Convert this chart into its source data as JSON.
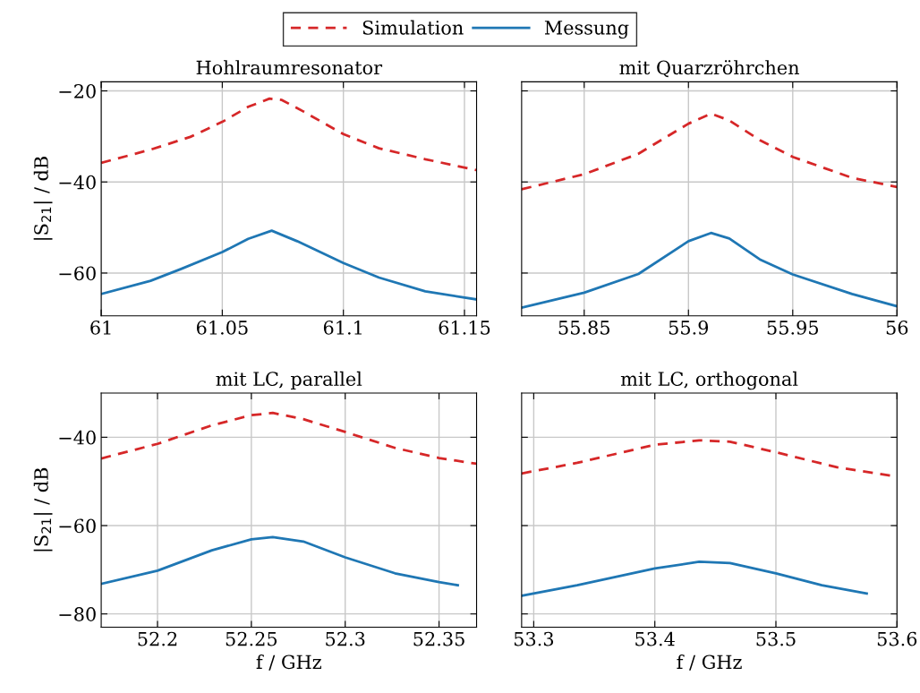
{
  "chart_data": [
    {
      "type": "line",
      "title": "Hohlraumresonator",
      "ylabel": "|S$_{21}$| / dB",
      "legend": "top",
      "grid": true,
      "tick_labels": "xy",
      "xlim": [
        61,
        61.155
      ],
      "xticks": [
        61,
        61.05,
        61.1,
        61.15
      ],
      "ylim": [
        -69.4,
        -18
      ],
      "yticks": [
        {
          "value": -20,
          "label": "−20"
        },
        {
          "value": -40,
          "label": "−40"
        },
        {
          "value": -60,
          "label": "−60"
        }
      ],
      "series": [
        {
          "name": "Simulation",
          "color": "#d62728",
          "line_style": "dashed",
          "x": [
            61.0,
            61.0204,
            61.0368,
            61.05,
            61.0607,
            61.0695,
            61.0746,
            61.0834,
            61.1,
            61.1147,
            61.1338,
            61.155
          ],
          "values": [
            -35.8,
            -32.9,
            -30.1,
            -26.8,
            -23.5,
            -21.7,
            -22.0,
            -24.5,
            -29.5,
            -32.6,
            -35.0,
            -37.4
          ]
        },
        {
          "name": "Messung",
          "color": "#1f77b4",
          "line_style": "solid",
          "x": [
            61.0,
            61.0204,
            61.033,
            61.05,
            61.0607,
            61.0704,
            61.0809,
            61.1,
            61.1147,
            61.1338,
            61.155
          ],
          "values": [
            -64.6,
            -61.7,
            -59.1,
            -55.4,
            -52.5,
            -50.7,
            -53.0,
            -57.8,
            -61.0,
            -64.0,
            -65.8
          ]
        }
      ]
    },
    {
      "type": "line",
      "title": "mit Quarzröhrchen",
      "grid": true,
      "tick_labels": "x",
      "xlim": [
        55.82,
        56
      ],
      "xticks": [
        55.85,
        55.9,
        55.95,
        56
      ],
      "ylim": [
        -69.4,
        -18
      ],
      "yticks": [
        {
          "value": -20,
          "label": null
        },
        {
          "value": -40,
          "label": null
        },
        {
          "value": -60,
          "label": null
        }
      ],
      "series": [
        {
          "color": "#d62728",
          "line_style": "dashed",
          "x": [
            55.82,
            55.85,
            55.876,
            55.9,
            55.9108,
            55.9196,
            55.9342,
            55.95,
            55.9785,
            56.0
          ],
          "values": [
            -41.6,
            -38.3,
            -33.8,
            -27.2,
            -25.0,
            -26.5,
            -30.8,
            -34.5,
            -39.1,
            -41.1
          ]
        },
        {
          "color": "#1f77b4",
          "line_style": "solid",
          "x": [
            55.82,
            55.85,
            55.876,
            55.9,
            55.9108,
            55.9196,
            55.9342,
            55.95,
            55.9785,
            56.0
          ],
          "values": [
            -67.6,
            -64.3,
            -60.2,
            -53.0,
            -51.2,
            -52.4,
            -57.0,
            -60.3,
            -64.6,
            -67.3
          ]
        }
      ]
    },
    {
      "type": "line",
      "title": "mit LC, parallel",
      "ylabel": "|S$_{21}$| / dB",
      "xlabel": "f / GHz",
      "grid": true,
      "tick_labels": "xy",
      "xlim": [
        52.17,
        52.37
      ],
      "xticks": [
        52.2,
        52.25,
        52.3,
        52.35
      ],
      "ylim": [
        -83,
        -30
      ],
      "yticks": [
        {
          "value": -40,
          "label": "−40"
        },
        {
          "value": -60,
          "label": "−60"
        },
        {
          "value": -80,
          "label": "−80"
        }
      ],
      "series": [
        {
          "color": "#d62728",
          "line_style": "dashed",
          "x": [
            52.17,
            52.2,
            52.229,
            52.25,
            52.2614,
            52.2777,
            52.3,
            52.3265,
            52.35,
            52.37
          ],
          "values": [
            -44.8,
            -41.5,
            -37.3,
            -35.0,
            -34.5,
            -35.9,
            -38.8,
            -42.4,
            -44.7,
            -46.0
          ]
        },
        {
          "color": "#1f77b4",
          "line_style": "solid",
          "x": [
            52.17,
            52.2,
            52.229,
            52.25,
            52.2614,
            52.2777,
            52.3,
            52.3265,
            52.35,
            52.36
          ],
          "values": [
            -73.2,
            -70.2,
            -65.6,
            -63.1,
            -62.6,
            -63.6,
            -67.2,
            -70.8,
            -72.8,
            -73.5
          ]
        }
      ]
    },
    {
      "type": "line",
      "title": "mit LC, orthogonal",
      "xlabel": "f / GHz",
      "grid": true,
      "tick_labels": "x",
      "xlim": [
        53.29,
        53.6
      ],
      "xticks": [
        53.3,
        53.4,
        53.5,
        53.6
      ],
      "ylim": [
        -83,
        -30
      ],
      "yticks": [
        {
          "value": -40,
          "label": null
        },
        {
          "value": -60,
          "label": null
        },
        {
          "value": -80,
          "label": null
        }
      ],
      "series": [
        {
          "color": "#d62728",
          "line_style": "dashed",
          "x": [
            53.29,
            53.3359,
            53.4,
            53.4366,
            53.4621,
            53.5,
            53.5505,
            53.6
          ],
          "values": [
            -48.2,
            -45.8,
            -41.7,
            -40.7,
            -41.0,
            -43.4,
            -46.8,
            -48.9
          ]
        },
        {
          "color": "#1f77b4",
          "line_style": "solid",
          "x": [
            53.29,
            53.3359,
            53.4,
            53.4366,
            53.4621,
            53.5,
            53.5379,
            53.575
          ],
          "values": [
            -75.9,
            -73.5,
            -69.7,
            -68.2,
            -68.5,
            -70.8,
            -73.5,
            -75.4
          ]
        }
      ]
    }
  ]
}
